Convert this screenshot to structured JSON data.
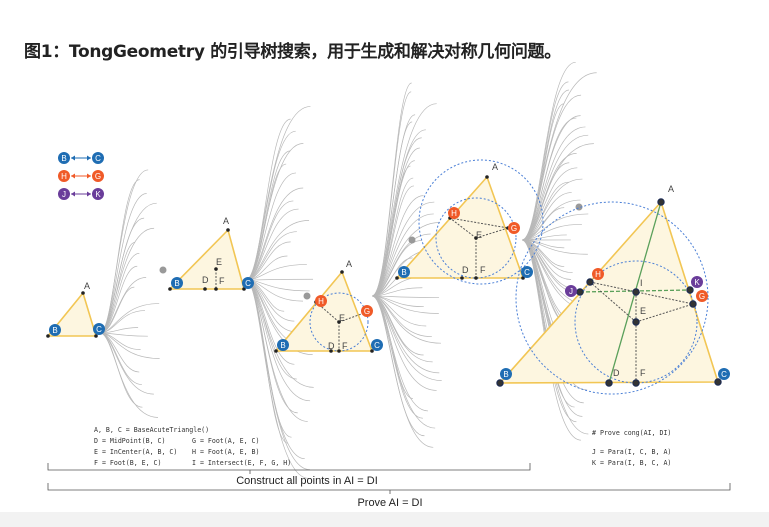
{
  "title": "图1：TongGeometry 的引导树搜索，用于生成和解决对称几何问题。",
  "colors": {
    "blue_badge": "#1f6db3",
    "orange_badge": "#f05a28",
    "purple_badge": "#6a3d9a",
    "triangle_fill": "#fdf6e0",
    "triangle_edge": "#f2c654",
    "circle": "#4a7fd6",
    "green_line": "#5aa05a",
    "tree": "#b8b8b8"
  },
  "legend": [
    {
      "left": "B",
      "right": "C",
      "color": "#1f6db3"
    },
    {
      "left": "H",
      "right": "G",
      "color": "#f05a28"
    },
    {
      "left": "J",
      "right": "K",
      "color": "#6a3d9a"
    }
  ],
  "code_construct": [
    "A, B, C = BaseAcuteTriangle()",
    "D = MidPoint(B, C)",
    "E = InCenter(A, B, C)",
    "F = Foot(B, E, C)",
    "G = Foot(A, E, C)",
    "H = Foot(A, E, B)",
    "I = Intersect(E, F, G, H)"
  ],
  "code_prove": [
    "# Prove cong(AI, DI)",
    "J = Para(I, C, B, A)",
    "K = Para(I, B, C, A)"
  ],
  "brackets": {
    "construct": "Construct all points in AI = DI",
    "prove": "Prove AI = DI"
  },
  "stage_labels": [
    [
      "A",
      "B",
      "C"
    ],
    [
      "A",
      "B",
      "C",
      "D",
      "E",
      "F"
    ],
    [
      "A",
      "B",
      "C",
      "D",
      "E",
      "F",
      "G",
      "H"
    ],
    [
      "A",
      "B",
      "C",
      "D",
      "E",
      "F",
      "G",
      "H"
    ],
    [
      "A",
      "B",
      "C",
      "D",
      "E",
      "F",
      "G",
      "H",
      "I",
      "J",
      "K"
    ]
  ]
}
